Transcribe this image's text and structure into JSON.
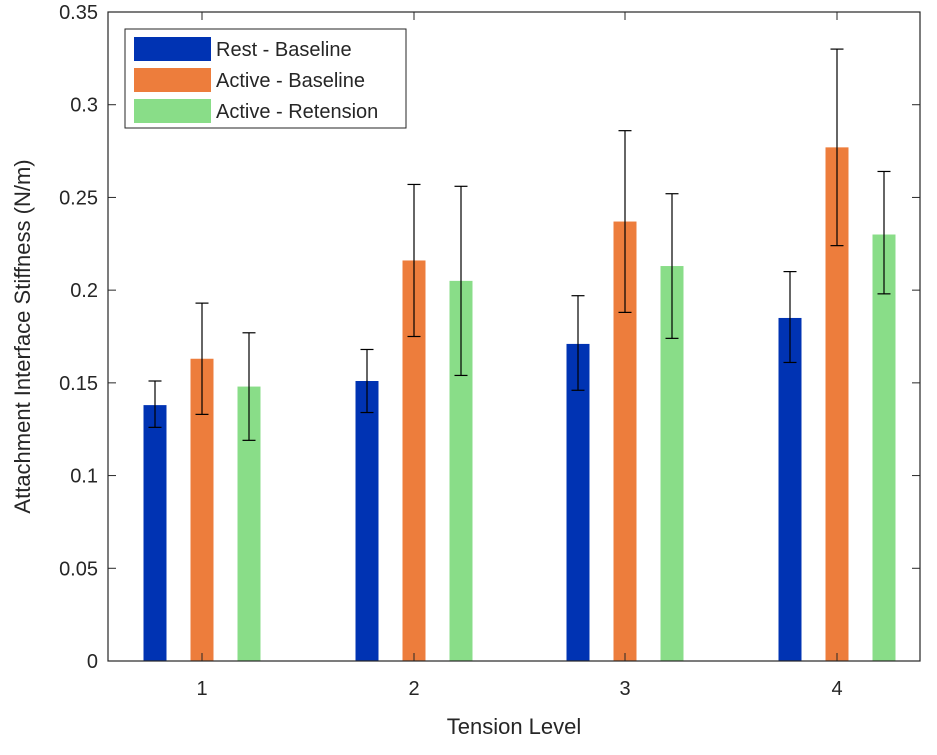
{
  "chart_data": {
    "type": "bar",
    "title": "",
    "xlabel": "Tension Level",
    "ylabel": "Attachment Interface Stiffness (N/m)",
    "categories": [
      "1",
      "2",
      "3",
      "4"
    ],
    "ylim": [
      0,
      0.35
    ],
    "yticks": [
      0,
      0.05,
      0.1,
      0.15,
      0.2,
      0.25,
      0.3,
      0.35
    ],
    "ytick_labels": [
      "0",
      "0.05",
      "0.1",
      "0.15",
      "0.2",
      "0.25",
      "0.3",
      "0.35"
    ],
    "grid": false,
    "legend_position": "top-left",
    "series": [
      {
        "name": "Rest - Baseline",
        "color": "#0033b3",
        "values": [
          0.138,
          0.151,
          0.171,
          0.185
        ],
        "error_low": [
          0.126,
          0.134,
          0.146,
          0.161
        ],
        "error_high": [
          0.151,
          0.168,
          0.197,
          0.21
        ]
      },
      {
        "name": "Active - Baseline",
        "color": "#ed7d3c",
        "values": [
          0.163,
          0.216,
          0.237,
          0.277
        ],
        "error_low": [
          0.133,
          0.175,
          0.188,
          0.224
        ],
        "error_high": [
          0.193,
          0.257,
          0.286,
          0.33
        ]
      },
      {
        "name": "Active - Retension",
        "color": "#89dd88",
        "values": [
          0.148,
          0.205,
          0.213,
          0.23
        ],
        "error_low": [
          0.119,
          0.154,
          0.174,
          0.198
        ],
        "error_high": [
          0.177,
          0.256,
          0.252,
          0.264
        ]
      }
    ]
  }
}
